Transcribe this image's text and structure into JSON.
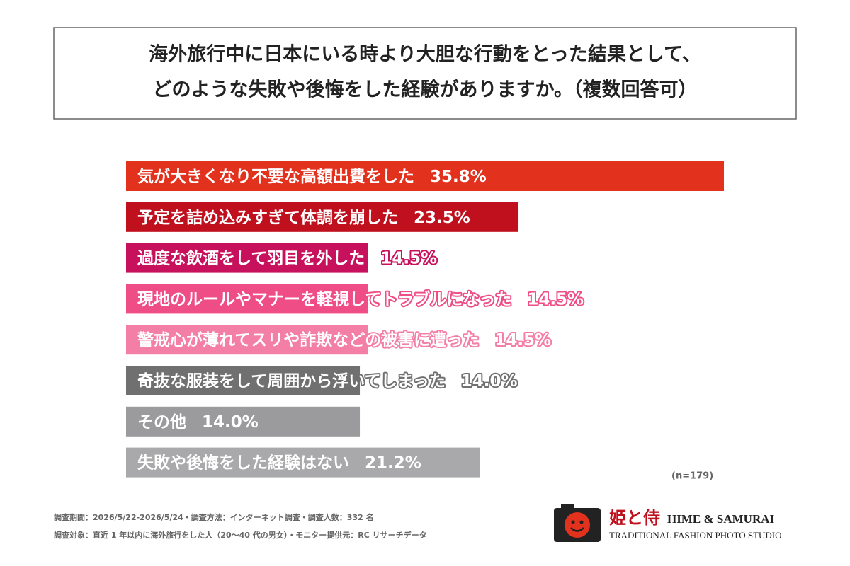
{
  "chart_data": {
    "type": "bar",
    "title_lines": [
      "海外旅行中に日本にいる時より大胆な行動をとった結果として、",
      "どのような失敗や後悔をした経験がありますか。（複数回答可）"
    ],
    "categories": [
      "気が大きくなり不要な高額出費をした",
      "予定を詰め込みすぎて体調を崩した",
      "過度な飲酒をして羽目を外した",
      "現地のルールやマナーを軽視してトラブルになった",
      "警戒心が薄れてスリや詐欺などの被害に遭った",
      "奇抜な服装をして周囲から浮いてしまった",
      "その他",
      "失敗や後悔をした経験はない"
    ],
    "values": [
      35.8,
      23.5,
      14.5,
      14.5,
      14.5,
      14.0,
      14.0,
      21.2
    ],
    "value_labels": [
      "35.8%",
      "23.5%",
      "14.5%",
      "14.5%",
      "14.5%",
      "14.0%",
      "14.0%",
      "21.2%"
    ],
    "colors": [
      "#e2311d",
      "#c0101e",
      "#c8115c",
      "#ee4d86",
      "#f47fa6",
      "#707070",
      "#9b9a9c",
      "#a9a8aa"
    ],
    "note": "(n=179)"
  },
  "footer": [
    "調査期間：2026/5/22-2026/5/24・調査方法：インターネット調査・調査人数：332 名",
    "調査対象：直近 1 年以内に海外旅行をした人（20〜40 代の男女）・モニター提供元：RC リサーチデータ"
  ],
  "logo": {
    "kanji": "姫と侍",
    "name": "HIME & SAMURAI",
    "tagline": "TRADITIONAL FASHION PHOTO STUDIO"
  }
}
